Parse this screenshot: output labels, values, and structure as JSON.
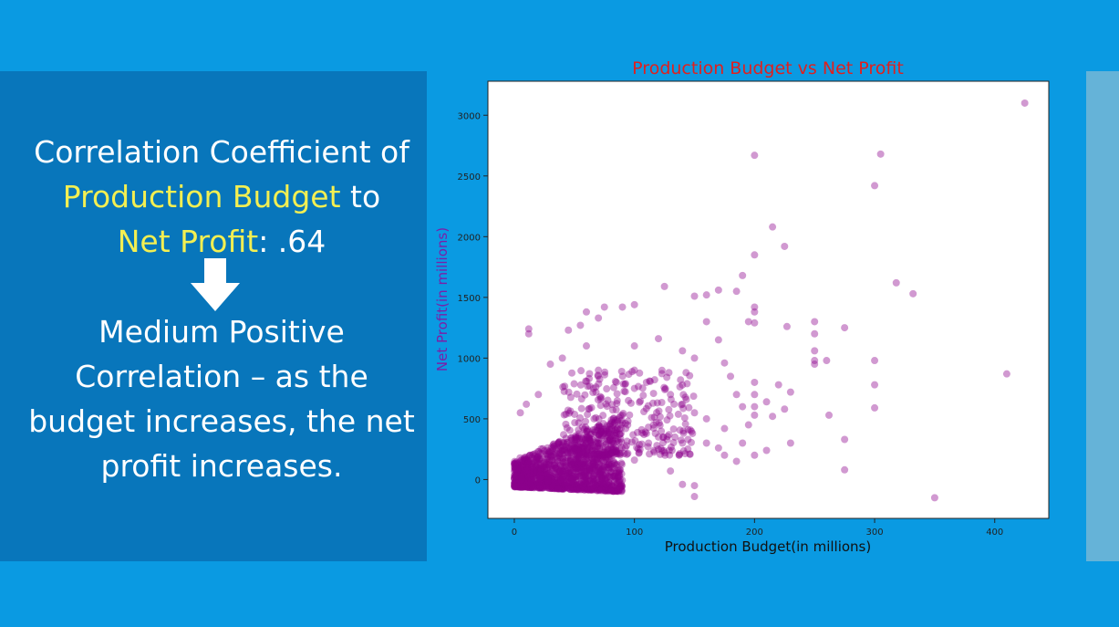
{
  "slide": {
    "headline": {
      "line1": "Correlation Coefficient of",
      "var1": "Production Budget",
      "to": " to",
      "var2": "Net Profit",
      "value": ": .64"
    },
    "conclusion": {
      "line1": "Medium Positive",
      "line2": "Correlation – as the",
      "line3": "budget increases, the net",
      "line4": "profit increases."
    },
    "colors": {
      "background": "#0a9ae2",
      "panel": "#0876bb",
      "highlight": "#f3ef52",
      "text": "#ffffff"
    },
    "icons": [
      "down-arrow-icon"
    ]
  },
  "chart_data": {
    "type": "scatter",
    "title": "Production Budget vs Net Profit",
    "xlabel": "Production Budget(in millions)",
    "ylabel": "Net Profit(in millions)",
    "xlim": [
      -22,
      445
    ],
    "ylim": [
      -320,
      3280
    ],
    "xticks": [
      0,
      100,
      200,
      300,
      400
    ],
    "yticks": [
      0,
      500,
      1000,
      1500,
      2000,
      2500,
      3000
    ],
    "grid": false,
    "colors": {
      "points": "#8b008b",
      "title": "#e0201e",
      "ylabel": "#7a1fa8",
      "xlabel": "#111111"
    },
    "cluster_region": {
      "x": [
        0,
        90
      ],
      "y": [
        -60,
        560
      ],
      "note": "dense overlapping points"
    },
    "points": [
      [
        425,
        3100
      ],
      [
        305,
        2680
      ],
      [
        200,
        2670
      ],
      [
        300,
        2420
      ],
      [
        215,
        2080
      ],
      [
        225,
        1920
      ],
      [
        200,
        1850
      ],
      [
        318,
        1620
      ],
      [
        332,
        1530
      ],
      [
        410,
        870
      ],
      [
        350,
        -150
      ],
      [
        250,
        1300
      ],
      [
        250,
        1200
      ],
      [
        275,
        1250
      ],
      [
        250,
        1060
      ],
      [
        260,
        980
      ],
      [
        250,
        980
      ],
      [
        250,
        950
      ],
      [
        300,
        980
      ],
      [
        300,
        780
      ],
      [
        300,
        590
      ],
      [
        262,
        530
      ],
      [
        275,
        330
      ],
      [
        275,
        80
      ],
      [
        227,
        1260
      ],
      [
        200,
        1420
      ],
      [
        200,
        1380
      ],
      [
        195,
        1300
      ],
      [
        200,
        1290
      ],
      [
        190,
        1680
      ],
      [
        185,
        1550
      ],
      [
        170,
        1560
      ],
      [
        160,
        1520
      ],
      [
        150,
        1510
      ],
      [
        125,
        1590
      ],
      [
        100,
        1440
      ],
      [
        90,
        1420
      ],
      [
        75,
        1420
      ],
      [
        70,
        1330
      ],
      [
        60,
        1380
      ],
      [
        55,
        1270
      ],
      [
        45,
        1230
      ],
      [
        12,
        1240
      ],
      [
        12,
        1200
      ],
      [
        60,
        1100
      ],
      [
        100,
        1100
      ],
      [
        120,
        1160
      ],
      [
        140,
        1060
      ],
      [
        150,
        1000
      ],
      [
        160,
        1300
      ],
      [
        170,
        1150
      ],
      [
        175,
        960
      ],
      [
        180,
        850
      ],
      [
        185,
        700
      ],
      [
        190,
        600
      ],
      [
        200,
        800
      ],
      [
        200,
        700
      ],
      [
        200,
        600
      ],
      [
        210,
        640
      ],
      [
        220,
        780
      ],
      [
        225,
        580
      ],
      [
        230,
        720
      ],
      [
        215,
        520
      ],
      [
        200,
        530
      ],
      [
        195,
        450
      ],
      [
        175,
        420
      ],
      [
        160,
        500
      ],
      [
        150,
        550
      ],
      [
        140,
        620
      ],
      [
        130,
        700
      ],
      [
        110,
        800
      ],
      [
        100,
        900
      ],
      [
        95,
        650
      ],
      [
        85,
        800
      ],
      [
        70,
        900
      ],
      [
        40,
        1000
      ],
      [
        30,
        950
      ],
      [
        20,
        700
      ],
      [
        10,
        620
      ],
      [
        5,
        550
      ],
      [
        150,
        -50
      ],
      [
        150,
        -140
      ],
      [
        140,
        -40
      ],
      [
        130,
        70
      ],
      [
        120,
        250
      ],
      [
        110,
        380
      ],
      [
        100,
        160
      ],
      [
        190,
        300
      ],
      [
        185,
        150
      ],
      [
        200,
        200
      ],
      [
        210,
        240
      ],
      [
        230,
        300
      ],
      [
        160,
        300
      ],
      [
        170,
        260
      ],
      [
        175,
        200
      ],
      [
        140,
        300
      ]
    ]
  }
}
